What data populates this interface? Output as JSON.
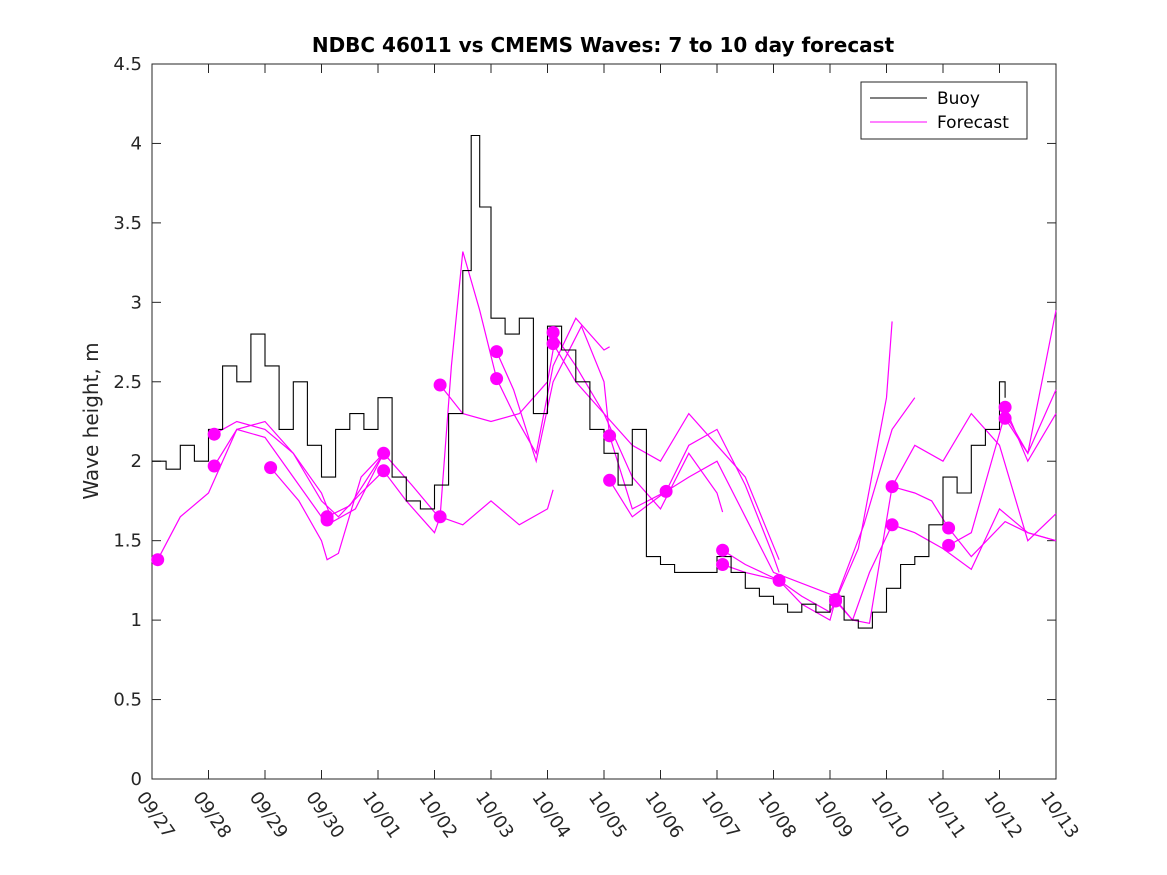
{
  "chart_data": {
    "type": "line",
    "title": "NDBC 46011 vs CMEMS Waves: 7 to 10 day forecast",
    "xlabel": "",
    "ylabel": "Wave height, m",
    "ylim": [
      0,
      4.5
    ],
    "xlim": [
      0,
      16
    ],
    "yticks": [
      0,
      0.5,
      1,
      1.5,
      2,
      2.5,
      3,
      3.5,
      4,
      4.5
    ],
    "ytick_labels": [
      "0",
      "0.5",
      "1",
      "1.5",
      "2",
      "2.5",
      "3",
      "3.5",
      "4",
      "4.5"
    ],
    "xticks": [
      0,
      1,
      2,
      3,
      4,
      5,
      6,
      7,
      8,
      9,
      10,
      11,
      12,
      13,
      14,
      15,
      16
    ],
    "xtick_labels": [
      "09/27",
      "09/28",
      "09/29",
      "09/30",
      "10/01",
      "10/02",
      "10/03",
      "10/04",
      "10/05",
      "10/06",
      "10/07",
      "10/08",
      "10/09",
      "10/10",
      "10/11",
      "10/12",
      "10/13"
    ],
    "grid": false,
    "legend": {
      "placement": "top-right",
      "entries": [
        {
          "label": "Buoy",
          "color": "#000000"
        },
        {
          "label": "Forecast",
          "color": "#ff00ff"
        }
      ]
    },
    "colors": {
      "buoy": "#000000",
      "forecast": "#ff00ff"
    },
    "buoy": {
      "x": [
        0,
        0.25,
        0.5,
        0.75,
        1,
        1.25,
        1.5,
        1.75,
        2,
        2.25,
        2.5,
        2.75,
        3,
        3.25,
        3.5,
        3.75,
        4,
        4.25,
        4.5,
        4.75,
        5,
        5.25,
        5.5,
        5.65,
        5.8,
        6,
        6.25,
        6.5,
        6.75,
        7,
        7.25,
        7.5,
        7.75,
        8,
        8.25,
        8.5,
        8.75,
        9,
        9.25,
        9.5,
        9.75,
        10,
        10.25,
        10.5,
        10.75,
        11,
        11.25,
        11.5,
        11.75,
        12,
        12.25,
        12.5,
        12.75,
        13,
        13.25,
        13.5,
        13.75,
        14,
        14.25,
        14.5,
        14.75,
        15,
        15.1
      ],
      "y": [
        2.0,
        1.95,
        2.1,
        2.0,
        2.2,
        2.6,
        2.5,
        2.8,
        2.6,
        2.2,
        2.5,
        2.1,
        1.9,
        2.2,
        2.3,
        2.2,
        2.4,
        1.9,
        1.75,
        1.7,
        1.85,
        2.3,
        3.2,
        4.05,
        3.6,
        2.9,
        2.8,
        2.9,
        2.3,
        2.85,
        2.7,
        2.5,
        2.2,
        2.05,
        1.85,
        2.2,
        1.4,
        1.35,
        1.3,
        1.3,
        1.3,
        1.4,
        1.3,
        1.2,
        1.15,
        1.1,
        1.05,
        1.1,
        1.05,
        1.15,
        1.0,
        0.95,
        1.05,
        1.2,
        1.35,
        1.4,
        1.6,
        1.9,
        1.8,
        2.1,
        2.2,
        2.5,
        2.4
      ]
    },
    "forecast_series": [
      {
        "name": "Forecast",
        "x": [
          0.1,
          0.5,
          1,
          1.5,
          2,
          2.5,
          3,
          3.1
        ],
        "y": [
          1.38,
          1.65,
          1.8,
          2.2,
          2.15,
          1.9,
          1.65,
          1.63
        ]
      },
      {
        "name": "Forecast",
        "x": [
          1.1,
          1.5,
          2,
          2.5,
          3,
          3.3,
          3.7,
          4.1
        ],
        "y": [
          1.97,
          2.2,
          2.25,
          2.05,
          1.75,
          1.65,
          1.8,
          1.94
        ]
      },
      {
        "name": "Forecast",
        "x": [
          1.1,
          1.5,
          2,
          2.5,
          3,
          3.2,
          3.6,
          4.1
        ],
        "y": [
          2.17,
          2.25,
          2.2,
          2.05,
          1.8,
          1.62,
          1.7,
          2.05
        ]
      },
      {
        "name": "Forecast",
        "x": [
          2.1,
          2.6,
          3,
          3.1,
          3.3,
          3.7,
          4.1
        ],
        "y": [
          1.96,
          1.75,
          1.5,
          1.38,
          1.42,
          1.9,
          2.05
        ]
      },
      {
        "name": "Forecast",
        "x": [
          3.1,
          3.5,
          4.1,
          4.6,
          5.0,
          5.1
        ],
        "y": [
          1.65,
          1.72,
          2.05,
          1.85,
          1.68,
          1.65
        ]
      },
      {
        "name": "Forecast",
        "x": [
          4.1,
          4.5,
          5.0,
          5.1,
          5.3,
          5.5,
          5.8,
          6.1
        ],
        "y": [
          1.94,
          1.75,
          1.55,
          1.65,
          2.6,
          3.32,
          2.95,
          2.52
        ]
      },
      {
        "name": "Forecast",
        "x": [
          5.1,
          5.5,
          6.0,
          6.5,
          7.0,
          7.1
        ],
        "y": [
          2.48,
          2.3,
          2.25,
          2.3,
          2.5,
          2.7
        ]
      },
      {
        "name": "Forecast",
        "x": [
          5.1,
          5.5,
          6.0,
          6.5,
          7.0,
          7.1
        ],
        "y": [
          1.65,
          1.6,
          1.75,
          1.6,
          1.7,
          1.82
        ]
      },
      {
        "name": "Forecast",
        "x": [
          6.1,
          6.4,
          6.8,
          7.1,
          7.6,
          8.0,
          8.1
        ],
        "y": [
          2.69,
          2.45,
          2.0,
          2.5,
          2.85,
          2.5,
          2.16
        ]
      },
      {
        "name": "Forecast",
        "x": [
          6.1,
          6.4,
          6.8,
          7.1,
          7.5,
          8.0,
          8.1
        ],
        "y": [
          2.52,
          2.3,
          2.05,
          2.6,
          2.9,
          2.7,
          2.72
        ]
      },
      {
        "name": "Forecast",
        "x": [
          7.1,
          7.5,
          8.0,
          8.5,
          9.0,
          9.5,
          10.0,
          10.1
        ],
        "y": [
          2.81,
          2.6,
          2.3,
          1.9,
          1.7,
          2.05,
          1.8,
          1.68
        ]
      },
      {
        "name": "Forecast",
        "x": [
          7.1,
          7.5,
          8.0,
          8.5,
          9.0,
          9.5,
          10.0,
          10.5,
          11.1
        ],
        "y": [
          2.74,
          2.5,
          2.3,
          2.1,
          2.0,
          2.3,
          2.1,
          1.9,
          1.38
        ]
      },
      {
        "name": "Forecast",
        "x": [
          8.1,
          8.5,
          9.1,
          9.5,
          10.0,
          10.5,
          11.0,
          11.1
        ],
        "y": [
          2.16,
          1.7,
          1.81,
          2.1,
          2.2,
          1.85,
          1.4,
          1.3
        ]
      },
      {
        "name": "Forecast",
        "x": [
          8.1,
          8.5,
          9.1,
          9.5,
          10.0,
          10.5,
          11.0,
          12.1
        ],
        "y": [
          1.88,
          1.65,
          1.81,
          1.9,
          2.0,
          1.65,
          1.3,
          1.15
        ]
      },
      {
        "name": "Forecast",
        "x": [
          10.1,
          10.5,
          11.1,
          11.5,
          12.0,
          12.1,
          12.5,
          13.0,
          13.1
        ],
        "y": [
          1.44,
          1.35,
          1.25,
          1.15,
          1.05,
          1.12,
          1.45,
          2.4,
          2.88
        ]
      },
      {
        "name": "Forecast",
        "x": [
          10.1,
          10.5,
          11.1,
          11.5,
          12.0,
          12.1,
          12.6,
          13.1,
          13.5
        ],
        "y": [
          1.35,
          1.3,
          1.25,
          1.1,
          1.0,
          1.13,
          1.6,
          2.2,
          2.4
        ]
      },
      {
        "name": "Forecast",
        "x": [
          12.1,
          12.4,
          12.7,
          13.1,
          13.5,
          13.8,
          14.1
        ],
        "y": [
          1.13,
          1.0,
          0.98,
          1.84,
          1.8,
          1.75,
          1.58
        ]
      },
      {
        "name": "Forecast",
        "x": [
          12.1,
          12.4,
          12.7,
          13.1,
          13.5,
          14.0,
          14.5,
          15.0,
          15.5,
          16.0
        ],
        "y": [
          1.12,
          1.0,
          1.3,
          1.6,
          1.55,
          1.45,
          1.32,
          1.7,
          1.55,
          1.5
        ]
      },
      {
        "name": "Forecast",
        "x": [
          13.1,
          13.5,
          14.0,
          14.5,
          15.0,
          15.5,
          16.0
        ],
        "y": [
          1.84,
          2.1,
          2.0,
          2.3,
          2.1,
          1.5,
          1.67
        ]
      },
      {
        "name": "Forecast",
        "x": [
          14.1,
          14.5,
          15.1,
          15.5,
          16.0
        ],
        "y": [
          1.58,
          1.4,
          1.62,
          1.55,
          1.5
        ]
      },
      {
        "name": "Forecast",
        "x": [
          14.1,
          14.5,
          15.1,
          15.5,
          16.0
        ],
        "y": [
          1.47,
          1.55,
          2.3,
          2.05,
          2.45
        ]
      },
      {
        "name": "Forecast",
        "x": [
          15.1,
          15.5,
          16.0
        ],
        "y": [
          2.27,
          2.05,
          2.95
        ]
      },
      {
        "name": "Forecast",
        "x": [
          15.1,
          15.5,
          16.0
        ],
        "y": [
          2.34,
          2.0,
          2.3
        ]
      }
    ],
    "forecast_markers": {
      "x": [
        0.1,
        1.1,
        1.1,
        2.1,
        3.1,
        3.1,
        4.1,
        4.1,
        5.1,
        5.1,
        6.1,
        6.1,
        7.1,
        7.1,
        8.1,
        8.1,
        9.1,
        10.1,
        10.1,
        11.1,
        12.1,
        12.1,
        13.1,
        13.1,
        14.1,
        14.1,
        15.1,
        15.1
      ],
      "y": [
        1.38,
        1.97,
        2.17,
        1.96,
        1.65,
        1.63,
        2.05,
        1.94,
        2.48,
        1.65,
        2.69,
        2.52,
        2.81,
        2.74,
        2.16,
        1.88,
        1.81,
        1.44,
        1.35,
        1.25,
        1.13,
        1.12,
        1.84,
        1.6,
        1.58,
        1.47,
        2.34,
        2.27
      ]
    }
  }
}
